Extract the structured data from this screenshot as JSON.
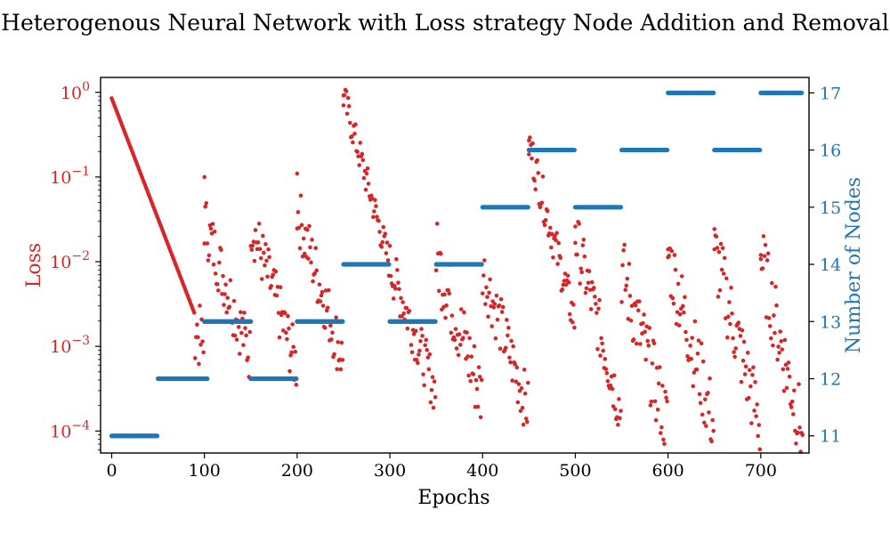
{
  "chart_data": {
    "type": "scatter",
    "title": "Heterogenous Neural Network with Loss strategy Node Addition and Removal",
    "xlabel": "Epochs",
    "ylabel_left": "Loss",
    "ylabel_right": "Number of Nodes",
    "xlim": [
      -12,
      752
    ],
    "xticks": [
      0,
      100,
      200,
      300,
      400,
      500,
      600,
      700
    ],
    "left_axis": {
      "scale": "log",
      "ylim": [
        5.5e-05,
        1.5
      ],
      "ticks": [
        {
          "label_base": "10",
          "label_exp": "0",
          "value": 1
        },
        {
          "label_base": "10",
          "label_exp": "−1",
          "value": 0.1
        },
        {
          "label_base": "10",
          "label_exp": "−2",
          "value": 0.01
        },
        {
          "label_base": "10",
          "label_exp": "−3",
          "value": 0.001
        },
        {
          "label_base": "10",
          "label_exp": "−4",
          "value": 0.0001
        }
      ]
    },
    "right_axis": {
      "scale": "linear",
      "ylim": [
        10.7,
        17.27
      ],
      "ticks": [
        "11",
        "12",
        "13",
        "14",
        "15",
        "16",
        "17"
      ]
    },
    "colors": {
      "loss": "#d62728",
      "nodes": "#1f77b4",
      "loss_axis": "#d62728",
      "nodes_axis": "#1f77b4"
    },
    "series": [
      {
        "axis": "left",
        "decay_segments": [
          {
            "start": 0,
            "end": 90,
            "y0": 0.85,
            "y1": 0.0025,
            "spread": 0.0
          },
          {
            "start": 90,
            "end": 100,
            "y0": 0.0018,
            "y1": 0.0009,
            "spread": 0.4
          },
          {
            "start": 100,
            "end": 150,
            "y0": 0.03,
            "y1": 0.0008,
            "spread": 0.35
          },
          {
            "start": 150,
            "end": 200,
            "y0": 0.03,
            "y1": 0.0006,
            "spread": 0.35
          },
          {
            "start": 200,
            "end": 250,
            "y0": 0.04,
            "y1": 0.0007,
            "spread": 0.35
          },
          {
            "start": 250,
            "end": 300,
            "y0": 0.9,
            "y1": 0.01,
            "spread": 0.2
          },
          {
            "start": 300,
            "end": 350,
            "y0": 0.009,
            "y1": 0.0003,
            "spread": 0.3
          },
          {
            "start": 350,
            "end": 400,
            "y0": 0.012,
            "y1": 0.00025,
            "spread": 0.45
          },
          {
            "start": 400,
            "end": 450,
            "y0": 0.008,
            "y1": 0.00018,
            "spread": 0.35
          },
          {
            "start": 450,
            "end": 500,
            "y0": 0.25,
            "y1": 0.002,
            "spread": 0.25
          },
          {
            "start": 500,
            "end": 550,
            "y0": 0.02,
            "y1": 0.00017,
            "spread": 0.35
          },
          {
            "start": 550,
            "end": 600,
            "y0": 0.008,
            "y1": 0.00012,
            "spread": 0.45
          },
          {
            "start": 600,
            "end": 650,
            "y0": 0.012,
            "y1": 0.00012,
            "spread": 0.45
          },
          {
            "start": 650,
            "end": 700,
            "y0": 0.013,
            "y1": 0.00012,
            "spread": 0.45
          },
          {
            "start": 700,
            "end": 745,
            "y0": 0.011,
            "y1": 0.0001,
            "spread": 0.45
          }
        ],
        "spikes": [
          [
            100,
            0.1
          ],
          [
            200,
            0.11
          ],
          [
            250,
            0.92
          ],
          [
            450,
            0.27
          ],
          [
            500,
            0.026
          ],
          [
            600,
            0.014
          ],
          [
            650,
            0.014
          ],
          [
            700,
            0.012
          ],
          [
            745,
            9e-05
          ]
        ]
      },
      {
        "axis": "right",
        "steps": [
          [
            0,
            50,
            11
          ],
          [
            50,
            104,
            12
          ],
          [
            100,
            151,
            13
          ],
          [
            150,
            200,
            12
          ],
          [
            200,
            250,
            13
          ],
          [
            250,
            300,
            14
          ],
          [
            300,
            350,
            13
          ],
          [
            350,
            400,
            14
          ],
          [
            400,
            450,
            15
          ],
          [
            450,
            500,
            16
          ],
          [
            500,
            550,
            15
          ],
          [
            550,
            600,
            16
          ],
          [
            600,
            650,
            17
          ],
          [
            650,
            700,
            16
          ],
          [
            700,
            745,
            17
          ]
        ]
      }
    ]
  }
}
